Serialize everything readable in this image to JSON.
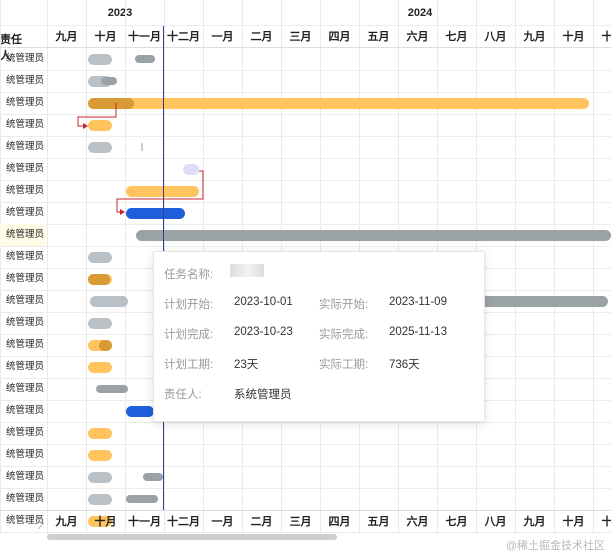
{
  "header": {
    "years": [
      {
        "label": "2023"
      },
      {
        "label": "2024"
      }
    ],
    "resp_column": "责任人",
    "months": [
      "九月",
      "十月",
      "十一月",
      "十二月",
      "一月",
      "二月",
      "三月",
      "四月",
      "五月",
      "六月",
      "七月",
      "八月",
      "九月",
      "十月",
      "十一"
    ]
  },
  "rows": [
    "统管理员",
    "统管理员",
    "统管理员",
    "统管理员",
    "统管理员",
    "统管理员",
    "统管理员",
    "统管理员",
    "统管理员",
    "统管理员",
    "统管理员",
    "统管理员",
    "统管理员",
    "统管理员",
    "统管理员",
    "统管理员",
    "统管理员",
    "统管理员",
    "统管理员",
    "统管理员",
    "统管理员",
    "统管理员"
  ],
  "colors": {
    "plan": "#ffc45e",
    "plan_dark": "#d89a35",
    "gray": "#b9c1c6",
    "gray_dark": "#9aa2a6",
    "blue": "#1f5fdc",
    "lilac": "#dcdff3",
    "today": "#2b3fa3",
    "dependency": "#c8242b"
  },
  "tooltip": {
    "name_label": "任务名称:",
    "name_value": "",
    "plan_start_label": "计划开始:",
    "plan_start": "2023-10-01",
    "actual_start_label": "实际开始:",
    "actual_start": "2023-11-09",
    "plan_end_label": "计划完成:",
    "plan_end": "2023-10-23",
    "actual_end_label": "实际完成:",
    "actual_end": "2025-11-13",
    "plan_days_label": "计划工期:",
    "plan_days": "23天",
    "actual_days_label": "实际工期:",
    "actual_days": "736天",
    "owner_label": "责任人:",
    "owner": "系统管理员"
  },
  "watermark": "@稀土掘金技术社区"
}
